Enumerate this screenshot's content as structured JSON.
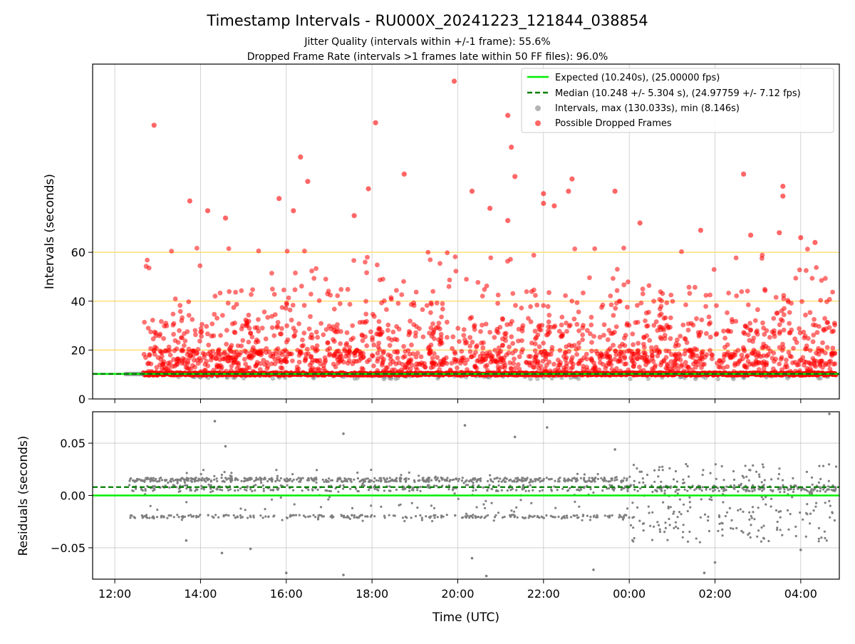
{
  "figure": {
    "title": "Timestamp Intervals - RU000X_20241223_121844_038854",
    "subtitle1": "Jitter Quality (intervals within +/-1 frame): 55.6%",
    "subtitle2": "Dropped Frame Rate (intervals >1 frames late within 50 FF files): 96.0%",
    "xlabel": "Time (UTC)"
  },
  "chart_data": [
    {
      "type": "scatter",
      "ylabel": "Intervals (seconds)",
      "x_range": [
        "12:00",
        "04:45"
      ],
      "x_start": "11:29",
      "x_end": "04:54",
      "x_ticks": [
        "12:00",
        "14:00",
        "16:00",
        "18:00",
        "20:00",
        "22:00",
        "00:00",
        "02:00",
        "04:00"
      ],
      "ylim": [
        0,
        137
      ],
      "y_ticks": [
        0,
        20,
        40,
        60
      ],
      "grid": true,
      "reference_lines": {
        "y": [
          20,
          40,
          60
        ],
        "color": "#ffd860"
      },
      "legend_position": "top-right",
      "series": [
        {
          "name": "Expected (10.240s), (25.00000 fps)",
          "style": "solid",
          "color": "#00ee00",
          "y": 10.24
        },
        {
          "name": "Median (10.248 +/- 5.304 s), (24.97759 +/- 7.12 fps)",
          "style": "dashed",
          "color": "#007f00",
          "y": 10.248
        },
        {
          "name": "Intervals, max (130.033s), min (8.146s)",
          "color": "#808080",
          "max": 130.033,
          "min": 8.146
        },
        {
          "name": "Possible Dropped Frames",
          "color": "#ff0000",
          "points": [
            [
              "12:55",
              112
            ],
            [
              "19:55",
              130
            ],
            [
              "21:10",
              116
            ],
            [
              "18:05",
              113
            ],
            [
              "21:15",
              103
            ],
            [
              "16:20",
              99
            ],
            [
              "18:45",
              92
            ],
            [
              "21:20",
              91
            ],
            [
              "22:40",
              90
            ],
            [
              "16:30",
              89
            ],
            [
              "17:55",
              86
            ],
            [
              "22:00",
              84
            ],
            [
              "22:35",
              85
            ],
            [
              "23:40",
              85
            ],
            [
              "20:20",
              85
            ],
            [
              "02:40",
              92
            ],
            [
              "03:35",
              87
            ],
            [
              "03:35",
              83
            ],
            [
              "13:45",
              81
            ],
            [
              "14:10",
              77
            ],
            [
              "15:50",
              82
            ],
            [
              "16:10",
              77
            ],
            [
              "17:35",
              75
            ],
            [
              "20:45",
              78
            ],
            [
              "21:10",
              73
            ],
            [
              "22:00",
              80
            ],
            [
              "22:15",
              79
            ],
            [
              "14:35",
              74
            ],
            [
              "00:15",
              72
            ],
            [
              "04:00",
              66
            ],
            [
              "04:20",
              64
            ],
            [
              "02:50",
              67
            ],
            [
              "03:30",
              68
            ],
            [
              "01:40",
              69
            ]
          ],
          "band": {
            "min": 10,
            "typical_max": 40
          }
        }
      ]
    },
    {
      "type": "scatter",
      "ylabel": "Residuals (seconds)",
      "ylim": [
        -0.08,
        0.08
      ],
      "y_ticks": [
        -0.05,
        0.0,
        0.05
      ],
      "y_tick_labels": [
        "−0.05",
        "0.00",
        "0.05"
      ],
      "grid": true,
      "series": [
        {
          "name": "Expected",
          "style": "solid",
          "color": "#00ee00",
          "y": 0.0
        },
        {
          "name": "Median",
          "style": "dashed",
          "color": "#007f00",
          "y": 0.008
        },
        {
          "name": "Residuals",
          "color": "#808080",
          "points": [
            [
              "14:20",
              0.071
            ],
            [
              "17:20",
              0.059
            ],
            [
              "20:10",
              0.067
            ],
            [
              "21:20",
              0.056
            ],
            [
              "22:05",
              0.065
            ],
            [
              "04:40",
              0.078
            ],
            [
              "14:35",
              0.047
            ],
            [
              "16:00",
              -0.074
            ],
            [
              "17:20",
              -0.076
            ],
            [
              "20:40",
              -0.077
            ],
            [
              "23:10",
              -0.071
            ],
            [
              "01:45",
              -0.074
            ],
            [
              "13:40",
              -0.043
            ],
            [
              "14:30",
              -0.055
            ],
            [
              "15:10",
              -0.051
            ],
            [
              "02:00",
              -0.064
            ],
            [
              "04:00",
              -0.052
            ],
            [
              "23:40",
              0.044
            ],
            [
              "20:20",
              -0.06
            ]
          ],
          "bands": [
            {
              "label": "upper",
              "y": 0.015
            },
            {
              "label": "center",
              "y": 0.007
            },
            {
              "label": "lower",
              "y": -0.02
            }
          ]
        }
      ]
    }
  ]
}
